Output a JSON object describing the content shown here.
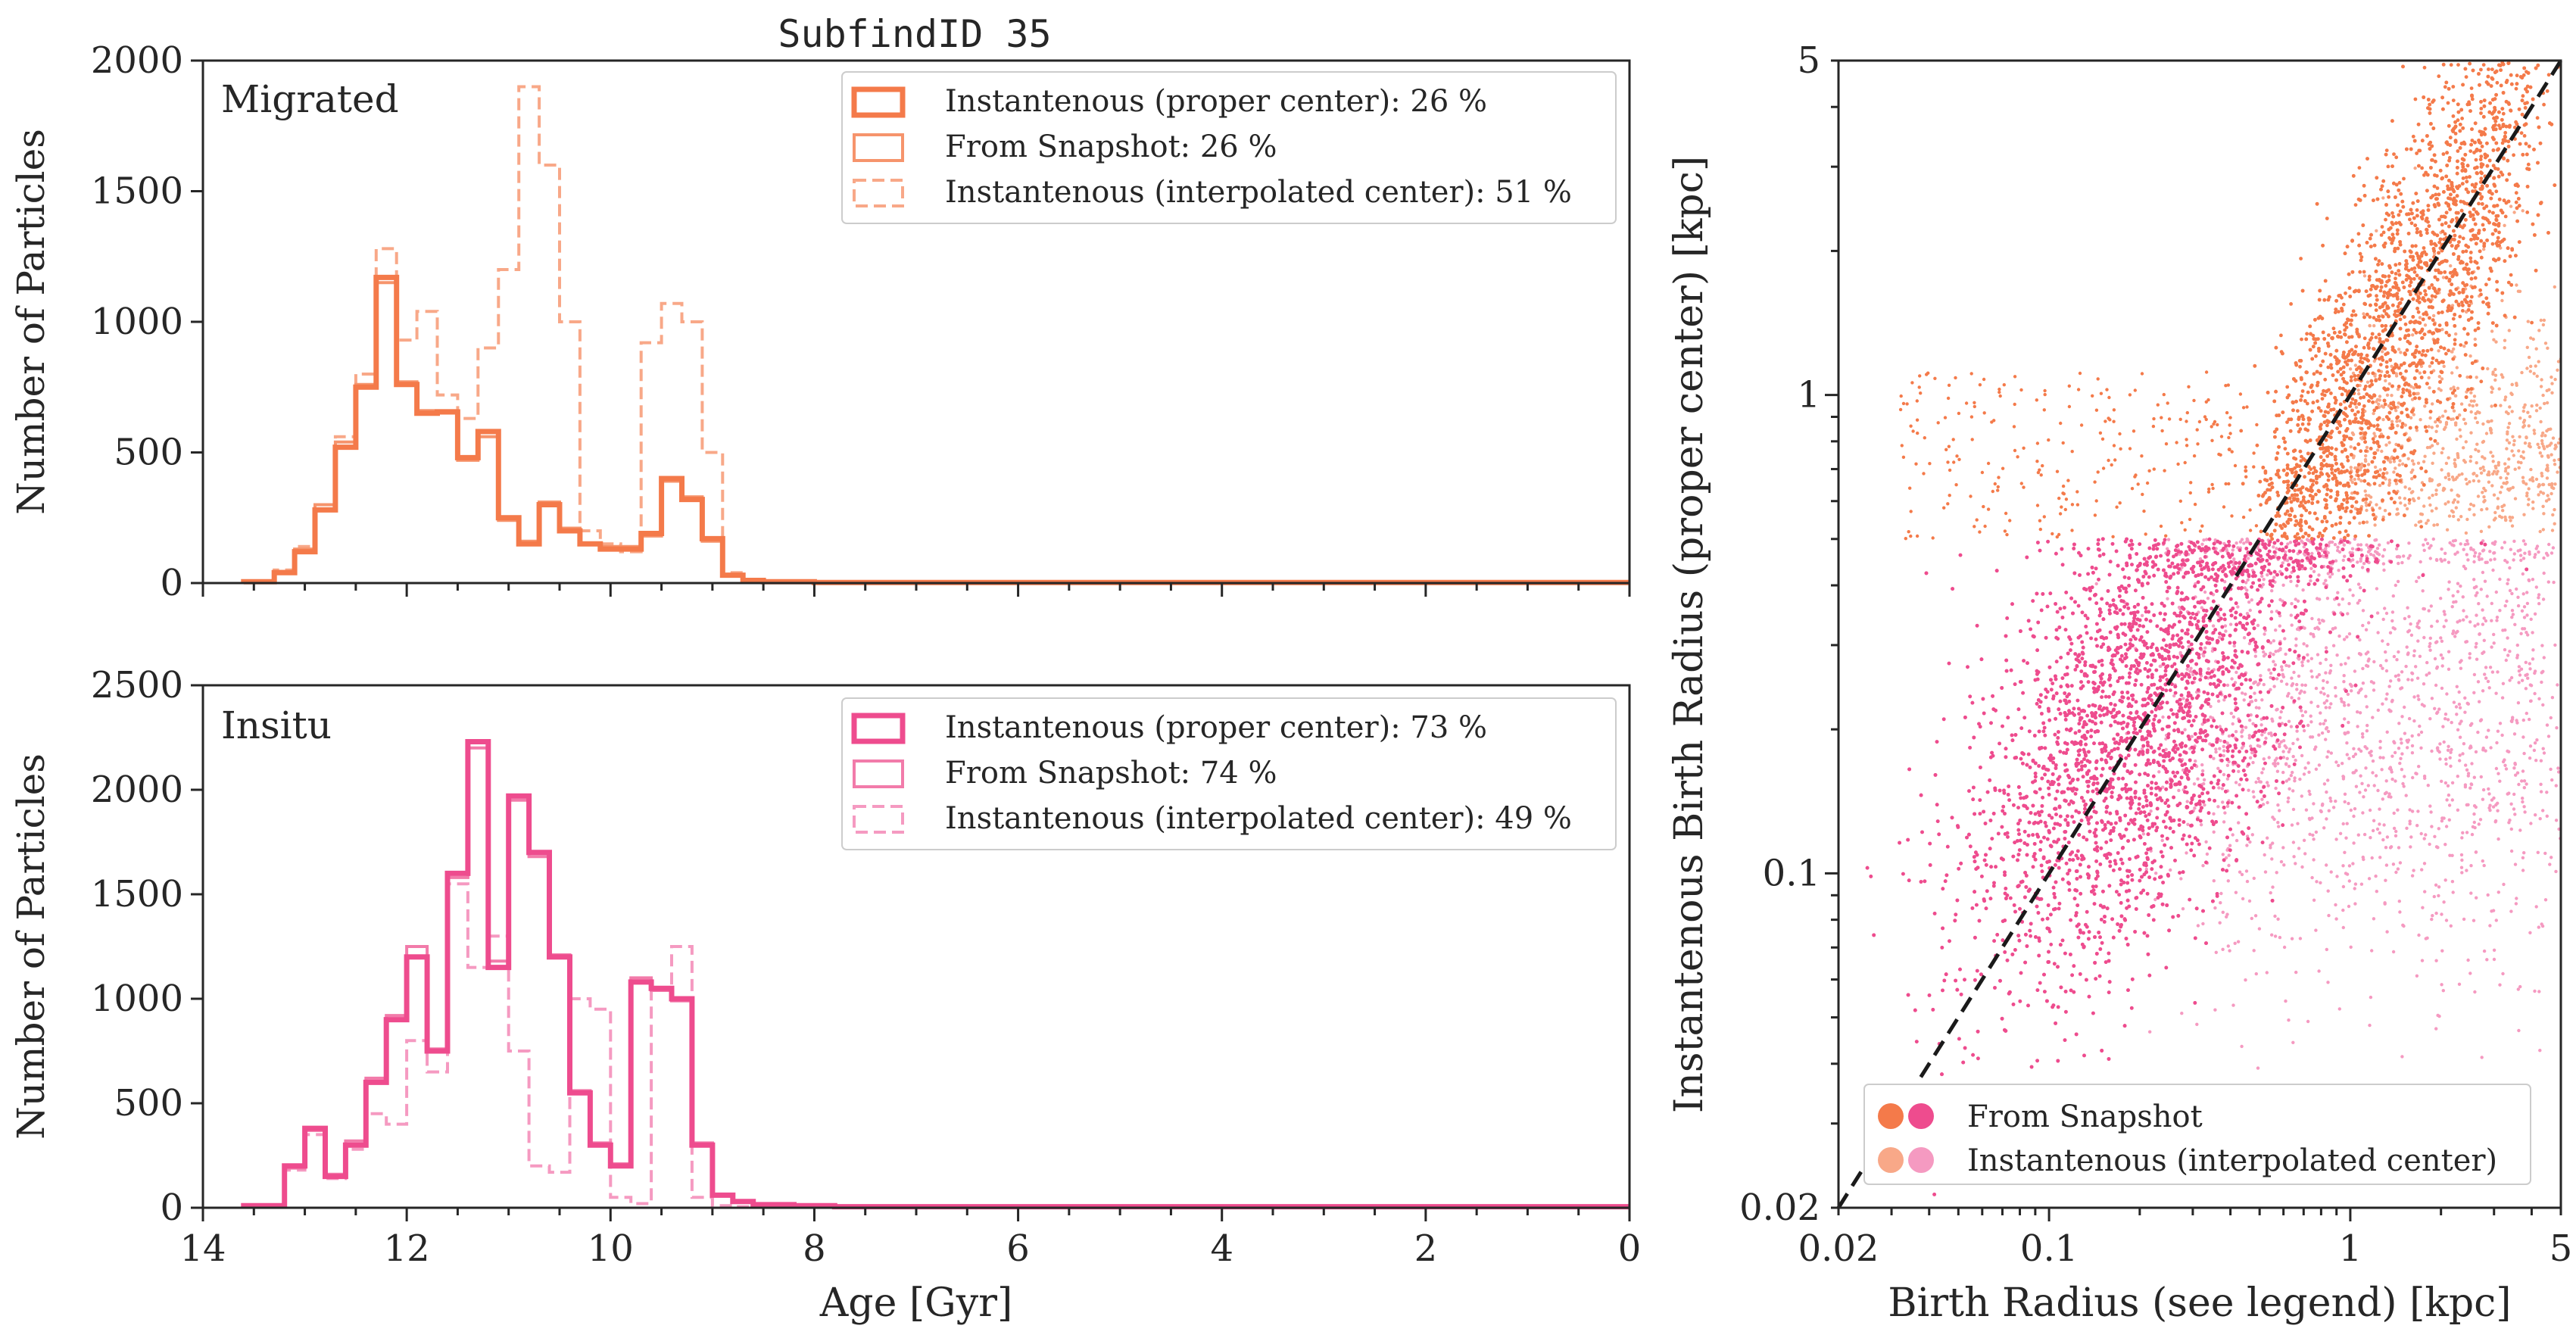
{
  "figure_title": "SubfindID 35",
  "colors": {
    "migrated": "#F47A4A",
    "migrated_snapshot": "#F6946C",
    "migrated_interp": "#F8A888",
    "insitu": "#EE4C8E",
    "insitu_snapshot": "#F27BAA",
    "insitu_interp": "#F59AC1",
    "axis": "#262626"
  },
  "chart_data": [
    {
      "type": "histogram-step",
      "panel": "top-left",
      "label": "Migrated",
      "ylabel": "Number of Particles",
      "xlabel": "",
      "xlim": [
        14,
        0
      ],
      "ylim": [
        0,
        2000
      ],
      "yticks": [
        "0",
        "500",
        "1000",
        "1500",
        "2000"
      ],
      "legend": [
        "Instantenous (proper center): 26 %",
        "From Snapshot: 26 %",
        "Instantenous (interpolated center): 51 %"
      ],
      "x": [
        13.6,
        13.3,
        13.1,
        12.9,
        12.7,
        12.5,
        12.3,
        12.1,
        11.9,
        11.7,
        11.5,
        11.3,
        11.1,
        10.9,
        10.7,
        10.5,
        10.3,
        10.1,
        9.9,
        9.7,
        9.5,
        9.3,
        9.1,
        8.9,
        8.7,
        8.5,
        8.0,
        6.0,
        4.0,
        2.0,
        0.0
      ],
      "series": [
        {
          "name": "Instantenous (proper center)",
          "style": "solid-thick",
          "values": [
            5,
            40,
            120,
            280,
            520,
            750,
            1170,
            760,
            650,
            655,
            480,
            580,
            250,
            150,
            300,
            200,
            150,
            130,
            130,
            190,
            400,
            320,
            170,
            30,
            10,
            5,
            2,
            2,
            2,
            2,
            2
          ]
        },
        {
          "name": "From Snapshot",
          "style": "solid-thin",
          "values": [
            5,
            45,
            130,
            300,
            540,
            760,
            1150,
            770,
            660,
            660,
            470,
            560,
            240,
            160,
            310,
            210,
            150,
            140,
            140,
            180,
            390,
            330,
            160,
            30,
            10,
            5,
            2,
            2,
            2,
            2,
            2
          ]
        },
        {
          "name": "Instantenous (interpolated center)",
          "style": "dashed",
          "values": [
            5,
            50,
            140,
            300,
            560,
            800,
            1280,
            930,
            1040,
            720,
            630,
            900,
            1200,
            1900,
            1600,
            1000,
            200,
            150,
            120,
            920,
            1070,
            1000,
            500,
            40,
            10,
            5,
            2,
            2,
            2,
            2,
            2
          ]
        }
      ]
    },
    {
      "type": "histogram-step",
      "panel": "bottom-left",
      "label": "Insitu",
      "ylabel": "Number of Particles",
      "xlabel": "Age [Gyr]",
      "xlim": [
        14,
        0
      ],
      "ylim": [
        0,
        2500
      ],
      "yticks": [
        "0",
        "500",
        "1000",
        "1500",
        "2000",
        "2500"
      ],
      "xticks": [
        "14",
        "12",
        "10",
        "8",
        "6",
        "4",
        "2",
        "0"
      ],
      "legend": [
        "Instantenous (proper center): 73 %",
        "From Snapshot: 74 %",
        "Instantenous (interpolated center): 49 %"
      ],
      "x": [
        13.6,
        13.2,
        13.0,
        12.8,
        12.6,
        12.4,
        12.2,
        12.0,
        11.8,
        11.6,
        11.4,
        11.2,
        11.0,
        10.8,
        10.6,
        10.4,
        10.2,
        10.0,
        9.8,
        9.6,
        9.4,
        9.2,
        9.0,
        8.8,
        8.6,
        8.2,
        7.8,
        6.0,
        4.0,
        2.0,
        0.0
      ],
      "series": [
        {
          "name": "Instantenous (proper center)",
          "style": "solid-thick",
          "values": [
            10,
            200,
            380,
            150,
            300,
            600,
            900,
            1200,
            750,
            1600,
            2230,
            1150,
            1970,
            1700,
            1200,
            550,
            300,
            200,
            1080,
            1050,
            1000,
            300,
            60,
            30,
            15,
            10,
            5,
            5,
            5,
            5,
            5
          ]
        },
        {
          "name": "From Snapshot",
          "style": "solid-thin",
          "values": [
            10,
            190,
            370,
            160,
            320,
            620,
            920,
            1250,
            760,
            1580,
            2200,
            1180,
            1950,
            1680,
            1210,
            560,
            310,
            210,
            1100,
            1040,
            990,
            310,
            60,
            30,
            15,
            10,
            5,
            5,
            5,
            5,
            5
          ]
        },
        {
          "name": "Instantenous (interpolated center)",
          "style": "dashed",
          "values": [
            10,
            180,
            350,
            140,
            280,
            450,
            400,
            800,
            650,
            1550,
            1150,
            1300,
            750,
            200,
            170,
            1000,
            950,
            50,
            20,
            1050,
            1250,
            50,
            10,
            5,
            5,
            5,
            5,
            5,
            5,
            5,
            5
          ]
        }
      ]
    },
    {
      "type": "scatter",
      "panel": "right",
      "xlabel": "Birth Radius (see legend) [kpc]",
      "ylabel": "Instantenous Birth Radius (proper center) [kpc]",
      "xscale": "log",
      "yscale": "log",
      "xlim": [
        0.02,
        5
      ],
      "ylim": [
        0.02,
        5
      ],
      "xticks": [
        "0.02",
        "0.1",
        "1",
        "5"
      ],
      "yticks": [
        "0.02",
        "0.1",
        "1",
        "5"
      ],
      "reference_line": "y = x (dashed)",
      "legend": [
        "From Snapshot",
        "Instantenous (interpolated center)"
      ],
      "migration_threshold_kpc": 0.5,
      "series": [
        {
          "name": "Migrated, From Snapshot",
          "color_key": "migrated",
          "note": "dense band along y = x above 0.5 kpc"
        },
        {
          "name": "Insitu, From Snapshot",
          "color_key": "insitu",
          "note": "dense cloud below 0.5 kpc centered near 0.2 kpc"
        },
        {
          "name": "Migrated, Instantenous (interpolated center)",
          "color_key": "migrated_interp",
          "note": "sparse points at large x above 0.5 kpc"
        },
        {
          "name": "Insitu, Instantenous (interpolated center)",
          "color_key": "insitu_interp",
          "note": "scattered points at large x below 0.5 kpc"
        }
      ]
    }
  ]
}
